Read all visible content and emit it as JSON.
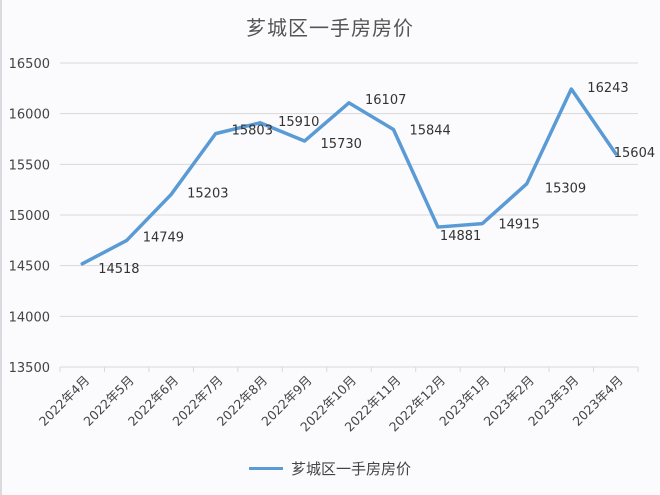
{
  "chart_data": {
    "type": "line",
    "title": "芗城区一手房房价",
    "xlabel": "",
    "ylabel": "",
    "categories": [
      "2022年4月",
      "2022年5月",
      "2022年6月",
      "2022年7月",
      "2022年8月",
      "2022年9月",
      "2022年10月",
      "2022年11月",
      "2022年12月",
      "2023年1月",
      "2023年2月",
      "2023年3月",
      "2023年4月"
    ],
    "series": [
      {
        "name": "芗城区一手房房价",
        "color": "#5b9bd5",
        "values": [
          14518,
          14749,
          15203,
          15803,
          15910,
          15730,
          16107,
          15844,
          14881,
          14915,
          15309,
          16243,
          15604
        ]
      }
    ],
    "ylim": [
      13500,
      16500
    ],
    "yticks": [
      13500,
      14000,
      14500,
      15000,
      15500,
      16000,
      16500
    ],
    "grid": true,
    "legend_position": "bottom",
    "data_labels": true
  },
  "colors": {
    "line": "#5b9bd5",
    "grid": "#d9d9d9"
  }
}
